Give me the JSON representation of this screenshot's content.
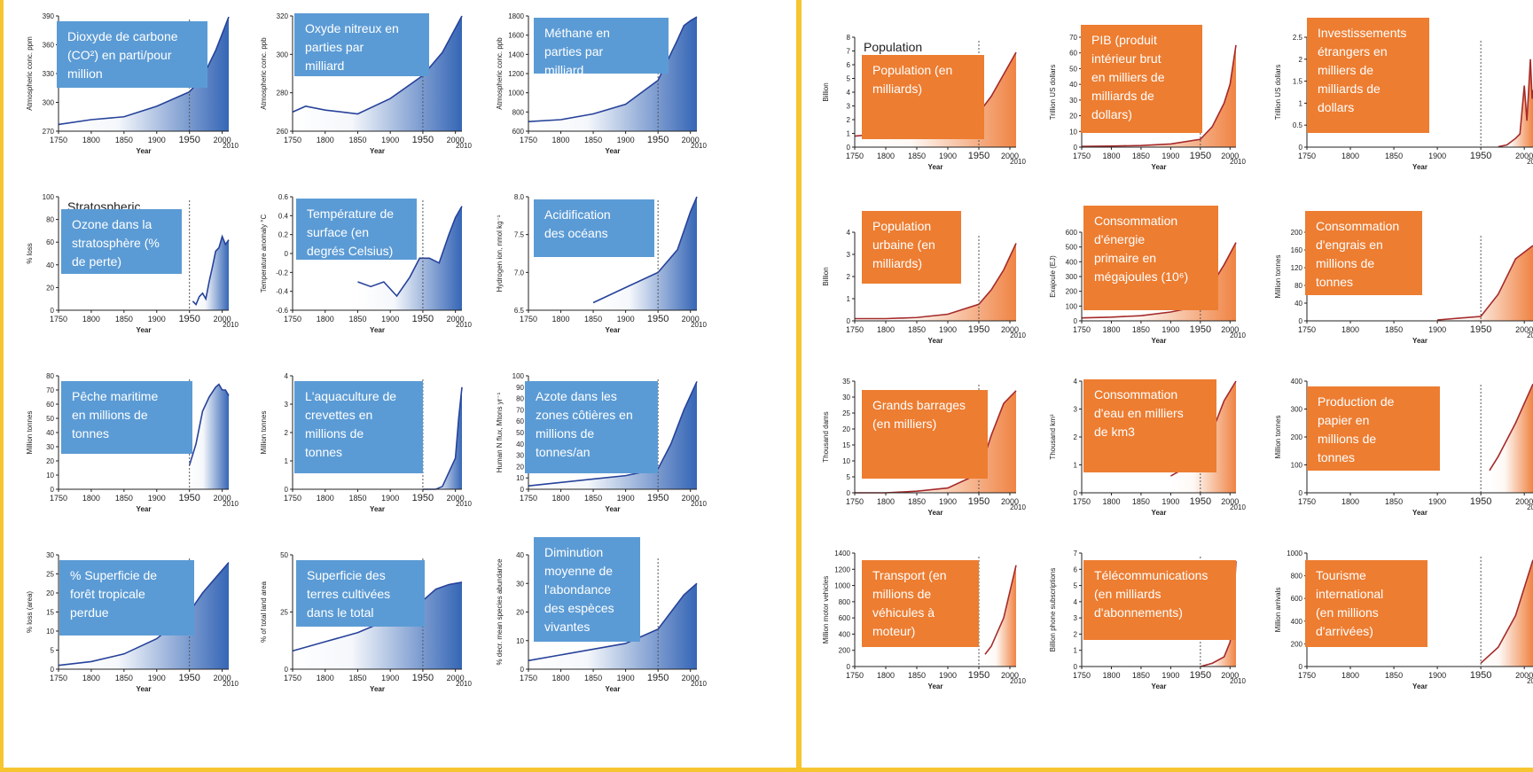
{
  "colors": {
    "background": "#f6c530",
    "earth_line": "#26429a",
    "earth_fill": "#2b5eb2",
    "earth_label_bg": "#5b9bd5",
    "socio_line": "#a52a2a",
    "socio_fill": "#ef7d3a",
    "socio_label_bg": "#ed7d31",
    "label_text": "#ffffff"
  },
  "x_axis": {
    "ticks": [
      "1750",
      "1800",
      "1850",
      "1900",
      "1950",
      "2000"
    ],
    "end_label": "2010",
    "title": "Year"
  },
  "chart_data": [
    {
      "type": "area",
      "panel": "earth-system",
      "label": "Dioxyde de carbone (CO²) en parti/pour million",
      "ylabel": "Atmospheric conc. ppm",
      "ylim": [
        270,
        390
      ],
      "yticks": [
        "270",
        "300",
        "330",
        "360",
        "390"
      ],
      "x": [
        1750,
        1800,
        1850,
        1900,
        1950,
        1970,
        1990,
        2010
      ],
      "y": [
        277,
        282,
        285,
        296,
        311,
        326,
        354,
        389
      ],
      "overlay_text": ""
    },
    {
      "type": "area",
      "panel": "earth-system",
      "label": "Oxyde nitreux en parties par milliard",
      "ylabel": "Atmospheric conc. ppb",
      "ylim": [
        260,
        320
      ],
      "yticks": [
        "260",
        "280",
        "300",
        "320"
      ],
      "x": [
        1750,
        1770,
        1800,
        1850,
        1900,
        1950,
        1980,
        2010
      ],
      "y": [
        270,
        273,
        271,
        269,
        277,
        289,
        301,
        323
      ],
      "overlay_text": ""
    },
    {
      "type": "area",
      "panel": "earth-system",
      "label": "Méthane en parties par milliard",
      "ylabel": "Atmospheric conc. ppb",
      "ylim": [
        600,
        1800
      ],
      "yticks": [
        "600",
        "800",
        "1000",
        "1200",
        "1400",
        "1600",
        "1800"
      ],
      "x": [
        1750,
        1800,
        1850,
        1900,
        1950,
        1980,
        1990,
        2000,
        2010
      ],
      "y": [
        700,
        720,
        780,
        880,
        1130,
        1550,
        1700,
        1750,
        1790
      ],
      "overlay_text": ""
    },
    {
      "type": "area",
      "panel": "earth-system",
      "label": "Ozone dans la stratosphère (% de perte)",
      "ylabel": "% loss",
      "ylim": [
        0,
        100
      ],
      "yticks": [
        "0",
        "20",
        "40",
        "60",
        "80",
        "100"
      ],
      "x": [
        1955,
        1960,
        1965,
        1970,
        1975,
        1980,
        1985,
        1990,
        1995,
        2000,
        2005,
        2010
      ],
      "y": [
        8,
        5,
        12,
        15,
        10,
        25,
        38,
        52,
        55,
        65,
        58,
        62
      ],
      "overlay_text": "Stratospheric"
    },
    {
      "type": "area",
      "panel": "earth-system",
      "label": "Température de surface (en degrés Celsius)",
      "ylabel": "Temperature anomaly °C",
      "ylim": [
        -0.6,
        0.6
      ],
      "yticks": [
        "-0.6",
        "-0.4",
        "-0.2",
        "0",
        "0.2",
        "0.4",
        "0.6"
      ],
      "x": [
        1850,
        1870,
        1890,
        1910,
        1930,
        1945,
        1960,
        1975,
        1990,
        2000,
        2010
      ],
      "y": [
        -0.3,
        -0.35,
        -0.3,
        -0.45,
        -0.25,
        -0.05,
        -0.05,
        -0.1,
        0.2,
        0.38,
        0.5
      ],
      "overlay_text": ""
    },
    {
      "type": "area",
      "panel": "earth-system",
      "label": "Acidification des océans",
      "ylabel": "Hydrogen ion, nmol kg⁻¹",
      "ylim": [
        6.5,
        8.0
      ],
      "yticks": [
        "6.5",
        "7.0",
        "7.5",
        "8.0"
      ],
      "x": [
        1850,
        1900,
        1950,
        1980,
        2000,
        2010
      ],
      "y": [
        6.6,
        6.8,
        7.0,
        7.3,
        7.8,
        8.2
      ],
      "overlay_text": ""
    },
    {
      "type": "area",
      "panel": "earth-system",
      "label": "Pêche maritime en millions de tonnes",
      "ylabel": "Million tonnes",
      "ylim": [
        0,
        80
      ],
      "yticks": [
        "0",
        "10",
        "20",
        "30",
        "40",
        "50",
        "60",
        "70",
        "80"
      ],
      "x": [
        1950,
        1960,
        1970,
        1980,
        1990,
        1995,
        2000,
        2005,
        2010
      ],
      "y": [
        17,
        32,
        55,
        65,
        72,
        74,
        70,
        70,
        66
      ],
      "overlay_text": ""
    },
    {
      "type": "area",
      "panel": "earth-system",
      "label": "L'aquaculture de crevettes en millions de tonnes",
      "ylabel": "Million tonnes",
      "ylim": [
        0,
        4
      ],
      "yticks": [
        "0",
        "1",
        "2",
        "3",
        "4"
      ],
      "x": [
        1950,
        1970,
        1980,
        1990,
        2000,
        2005,
        2010
      ],
      "y": [
        0,
        0,
        0.1,
        0.6,
        1.1,
        2.5,
        3.6
      ],
      "overlay_text": ""
    },
    {
      "type": "area",
      "panel": "earth-system",
      "label": "Azote dans les zones côtières en millions de tonnes/an",
      "ylabel": "Human N flux, Mtons yr⁻¹",
      "ylim": [
        0,
        100
      ],
      "yticks": [
        "0",
        "10",
        "20",
        "30",
        "40",
        "50",
        "60",
        "70",
        "80",
        "90",
        "100"
      ],
      "x": [
        1750,
        1800,
        1850,
        1900,
        1950,
        1970,
        1990,
        2010
      ],
      "y": [
        3,
        6,
        9,
        12,
        18,
        40,
        70,
        95
      ],
      "overlay_text": ""
    },
    {
      "type": "area",
      "panel": "earth-system",
      "label": "% Superficie de forêt tropicale perdue",
      "ylabel": "% loss (area)",
      "ylim": [
        0,
        30
      ],
      "yticks": [
        "0",
        "5",
        "10",
        "15",
        "20",
        "25",
        "30"
      ],
      "x": [
        1750,
        1800,
        1850,
        1900,
        1950,
        1970,
        1990,
        2010
      ],
      "y": [
        1,
        2,
        4,
        8,
        15,
        20,
        24,
        28
      ],
      "overlay_text": ""
    },
    {
      "type": "area",
      "panel": "earth-system",
      "label": "Superficie des terres cultivées dans le total",
      "ylabel": "% of total land area",
      "ylim": [
        0,
        50
      ],
      "yticks": [
        "0",
        "25",
        "50"
      ],
      "x": [
        1750,
        1800,
        1850,
        1900,
        1950,
        1970,
        1990,
        2010
      ],
      "y": [
        8,
        12,
        16,
        22,
        30,
        35,
        37,
        38
      ],
      "overlay_text": ""
    },
    {
      "type": "area",
      "panel": "earth-system",
      "label": "Diminution moyenne de l'abondance des espèces vivantes",
      "ylabel": "% decr. mean species abundance",
      "ylim": [
        0,
        40
      ],
      "yticks": [
        "0",
        "10",
        "20",
        "30",
        "40"
      ],
      "x": [
        1750,
        1800,
        1850,
        1900,
        1950,
        1970,
        1990,
        2010
      ],
      "y": [
        3,
        5,
        7,
        9,
        14,
        20,
        26,
        30
      ],
      "overlay_text": ""
    },
    {
      "type": "area",
      "panel": "socio-economic",
      "label": "Population (en milliards)",
      "ylabel": "Billion",
      "ylim": [
        0,
        8
      ],
      "yticks": [
        "0",
        "1",
        "2",
        "3",
        "4",
        "5",
        "6",
        "7",
        "8"
      ],
      "x": [
        1750,
        1800,
        1850,
        1900,
        1950,
        1970,
        1990,
        2010
      ],
      "y": [
        0.8,
        1.0,
        1.2,
        1.6,
        2.5,
        3.7,
        5.3,
        6.9
      ],
      "overlay_text": "Population"
    },
    {
      "type": "area",
      "panel": "socio-economic",
      "label": "PIB (produit intérieur brut en milliers de milliards de dollars)",
      "ylabel": "Trillion US dollars",
      "ylim": [
        0,
        70
      ],
      "yticks": [
        "0",
        "10",
        "20",
        "30",
        "40",
        "50",
        "60",
        "70"
      ],
      "x": [
        1750,
        1800,
        1850,
        1900,
        1950,
        1970,
        1990,
        2000,
        2010
      ],
      "y": [
        0.5,
        0.7,
        1,
        2,
        5,
        13,
        28,
        40,
        65
      ],
      "overlay_text": ""
    },
    {
      "type": "area",
      "panel": "socio-economic",
      "label": "Investissements étrangers en milliers de milliards de dollars",
      "ylabel": "Trillion US dollars",
      "ylim": [
        0,
        2.5
      ],
      "yticks": [
        "0",
        "0.5",
        "1",
        "1.5",
        "2",
        "2.5"
      ],
      "x": [
        1970,
        1980,
        1990,
        1995,
        2000,
        2003,
        2007,
        2009,
        2010
      ],
      "y": [
        0.01,
        0.05,
        0.2,
        0.3,
        1.4,
        0.6,
        2.0,
        1.1,
        1.3
      ],
      "overlay_text": ""
    },
    {
      "type": "area",
      "panel": "socio-economic",
      "label": "Population urbaine (en milliards)",
      "ylabel": "Billion",
      "ylim": [
        0,
        4
      ],
      "yticks": [
        "0",
        "1",
        "2",
        "3",
        "4"
      ],
      "x": [
        1750,
        1800,
        1850,
        1900,
        1950,
        1970,
        1990,
        2010
      ],
      "y": [
        0.1,
        0.1,
        0.15,
        0.3,
        0.75,
        1.4,
        2.3,
        3.5
      ],
      "overlay_text": ""
    },
    {
      "type": "area",
      "panel": "socio-economic",
      "label": "Consommation d'énergie primaire en mégajoules (10⁶)",
      "ylabel": "Exajoule (EJ)",
      "ylim": [
        0,
        600
      ],
      "yticks": [
        "0",
        "100",
        "200",
        "300",
        "400",
        "500",
        "600"
      ],
      "x": [
        1750,
        1800,
        1850,
        1900,
        1950,
        1970,
        1990,
        2010
      ],
      "y": [
        20,
        25,
        35,
        60,
        100,
        250,
        380,
        530
      ],
      "overlay_text": ""
    },
    {
      "type": "area",
      "panel": "socio-economic",
      "label": "Consommation d'engrais en millions de tonnes",
      "ylabel": "Million tonnes",
      "ylim": [
        0,
        200
      ],
      "yticks": [
        "0",
        "40",
        "80",
        "120",
        "160",
        "200"
      ],
      "x": [
        1900,
        1950,
        1970,
        1990,
        2010
      ],
      "y": [
        2,
        10,
        60,
        140,
        170
      ],
      "overlay_text": ""
    },
    {
      "type": "area",
      "panel": "socio-economic",
      "label": "Grands barrages (en milliers)",
      "ylabel": "Thousand dams",
      "ylim": [
        0,
        35
      ],
      "yticks": [
        "0",
        "5",
        "10",
        "15",
        "20",
        "25",
        "30",
        "35"
      ],
      "x": [
        1750,
        1800,
        1850,
        1900,
        1950,
        1970,
        1990,
        2010
      ],
      "y": [
        0,
        0,
        0.5,
        1.5,
        6,
        18,
        28,
        32
      ],
      "overlay_text": ""
    },
    {
      "type": "area",
      "panel": "socio-economic",
      "label": "Consommation d'eau en milliers de km3",
      "ylabel": "Thousand km³",
      "ylim": [
        0,
        4
      ],
      "yticks": [
        "0",
        "1",
        "2",
        "3",
        "4"
      ],
      "x": [
        1900,
        1950,
        1970,
        1990,
        2010
      ],
      "y": [
        0.6,
        1.2,
        2.2,
        3.3,
        4.0
      ],
      "overlay_text": ""
    },
    {
      "type": "area",
      "panel": "socio-economic",
      "label": "Production de papier en millions de tonnes",
      "ylabel": "Million tonnes",
      "ylim": [
        0,
        400
      ],
      "yticks": [
        "0",
        "100",
        "200",
        "300",
        "400"
      ],
      "x": [
        1960,
        1970,
        1990,
        2010
      ],
      "y": [
        80,
        130,
        250,
        390
      ],
      "overlay_text": ""
    },
    {
      "type": "area",
      "panel": "socio-economic",
      "label": "Transport (en millions de véhicules à moteur)",
      "ylabel": "Million motor vehicles",
      "ylim": [
        0,
        1400
      ],
      "yticks": [
        "0",
        "200",
        "400",
        "600",
        "800",
        "1000",
        "1200",
        "1400"
      ],
      "x": [
        1960,
        1970,
        1990,
        2010
      ],
      "y": [
        150,
        250,
        600,
        1250
      ],
      "overlay_text": ""
    },
    {
      "type": "area",
      "panel": "socio-economic",
      "label": "Télécommunications (en milliards d'abonnements)",
      "ylabel": "Billion phone subscriptions",
      "ylim": [
        0,
        7
      ],
      "yticks": [
        "0",
        "1",
        "2",
        "3",
        "4",
        "5",
        "6",
        "7"
      ],
      "x": [
        1950,
        1970,
        1990,
        2000,
        2005,
        2010
      ],
      "y": [
        0,
        0.2,
        0.6,
        1.5,
        3,
        6.5
      ],
      "overlay_text": ""
    },
    {
      "type": "area",
      "panel": "socio-economic",
      "label": "Tourisme international (en millions d'arrivées)",
      "ylabel": "Million arrivals",
      "ylim": [
        0,
        1000
      ],
      "yticks": [
        "0",
        "200",
        "400",
        "600",
        "800",
        "1000"
      ],
      "x": [
        1950,
        1970,
        1990,
        2010
      ],
      "y": [
        30,
        170,
        450,
        940
      ],
      "overlay_text": ""
    }
  ]
}
